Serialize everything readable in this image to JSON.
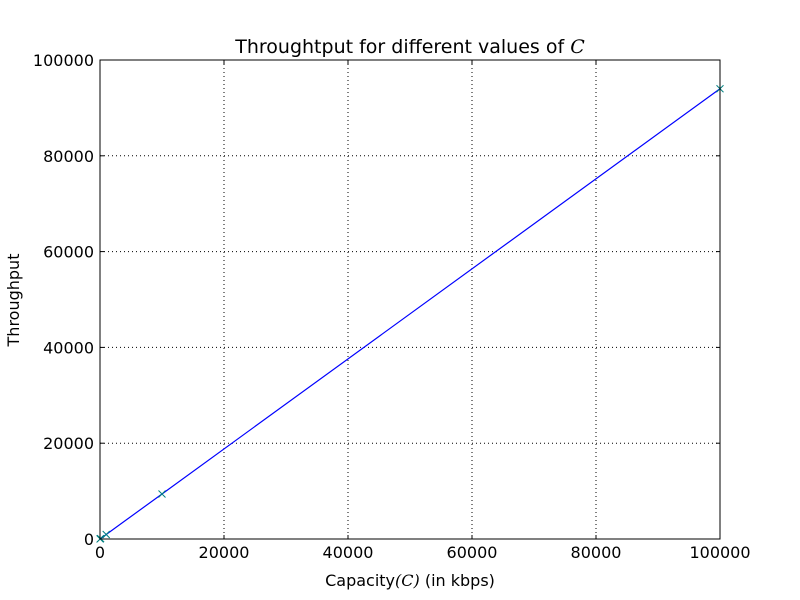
{
  "chart_data": {
    "type": "line",
    "title": "Throughtput for different values of C",
    "title_prefix": "Throughtput for different values of ",
    "title_symbol": "C",
    "xlabel_prefix": "Capacity",
    "xlabel_symbol": "(C)",
    "xlabel_suffix": " (in kbps)",
    "ylabel": "Throughput",
    "xlim": [
      0,
      100000
    ],
    "ylim": [
      0,
      100000
    ],
    "xticks": [
      0,
      20000,
      40000,
      60000,
      80000,
      100000
    ],
    "yticks": [
      0,
      20000,
      40000,
      60000,
      80000,
      100000
    ],
    "grid": true,
    "series": [
      {
        "color": "#0000ff",
        "marker": "x",
        "marker_color": "#008080",
        "x": [
          10,
          100,
          1000,
          10000,
          100000
        ],
        "y": [
          9,
          94,
          940,
          9400,
          94000
        ]
      }
    ]
  }
}
